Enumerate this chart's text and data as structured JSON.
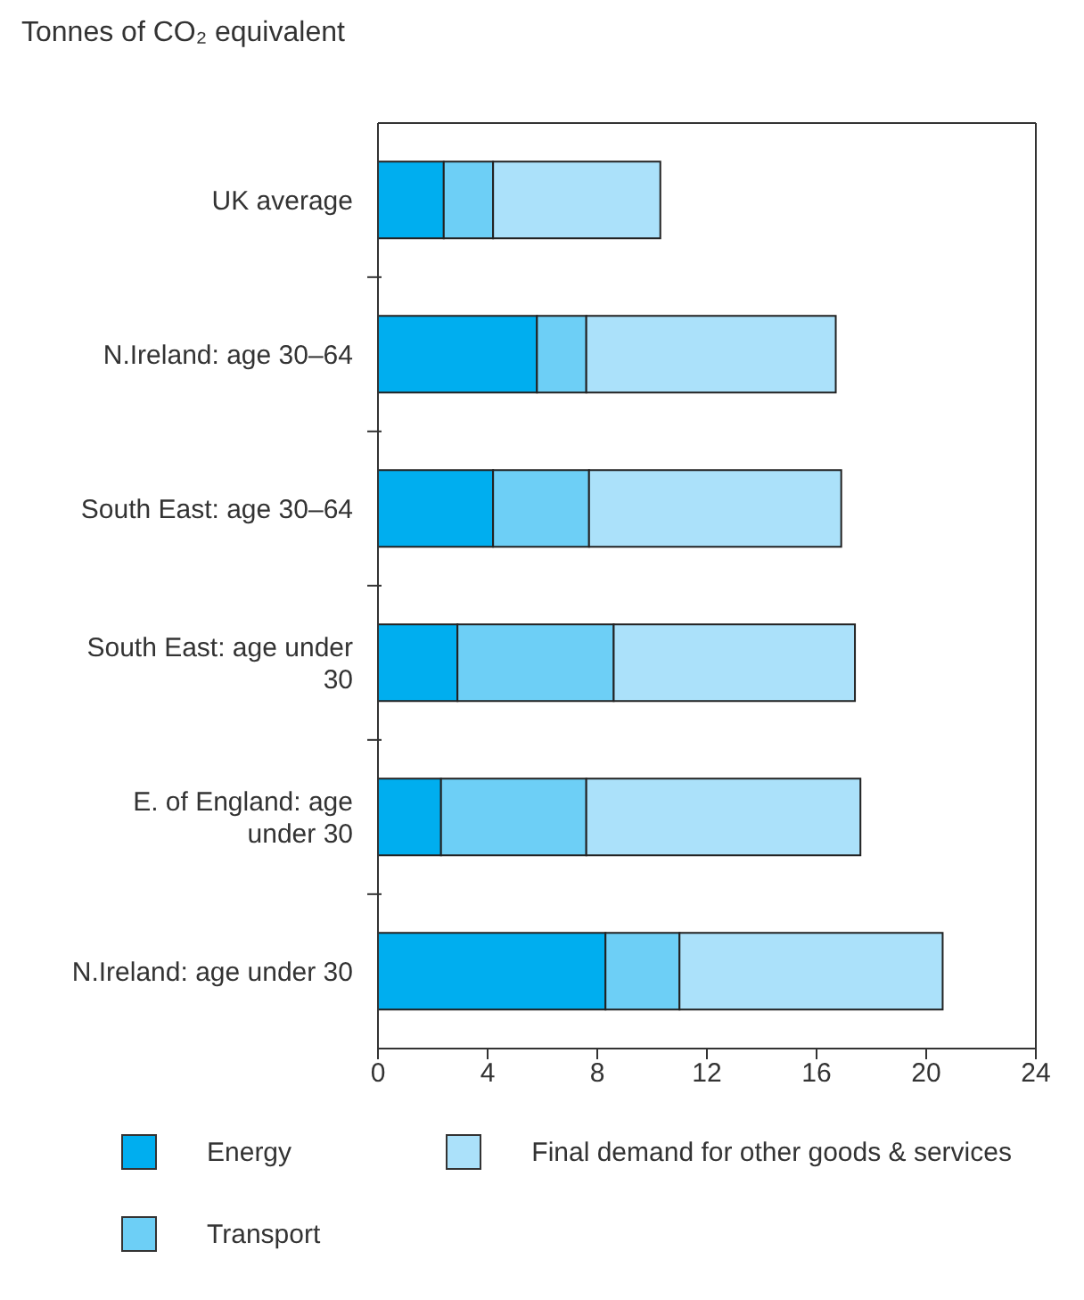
{
  "chart_data": {
    "type": "bar",
    "orientation": "horizontal",
    "stacked": true,
    "title": "Tonnes of CO₂ equivalent",
    "categories": [
      "UK average",
      "N.Ireland: age 30–64",
      "South East: age 30–64",
      "South East: age under 30",
      "E. of England: age under 30",
      "N.Ireland: age under 30"
    ],
    "series": [
      {
        "name": "Energy",
        "color": "#00aeef",
        "values": [
          2.4,
          5.8,
          4.2,
          2.9,
          2.3,
          8.3
        ]
      },
      {
        "name": "Transport",
        "color": "#6dcff6",
        "values": [
          1.8,
          1.8,
          3.5,
          5.7,
          5.3,
          2.7
        ]
      },
      {
        "name": "Final demand for other goods & services",
        "color": "#abe1fa",
        "values": [
          6.1,
          9.1,
          9.2,
          8.8,
          10.0,
          9.6
        ]
      }
    ],
    "xlim": [
      0,
      24
    ],
    "xticks": [
      0,
      4,
      8,
      12,
      16,
      20,
      24
    ],
    "grid": false,
    "legend": "bottom"
  }
}
